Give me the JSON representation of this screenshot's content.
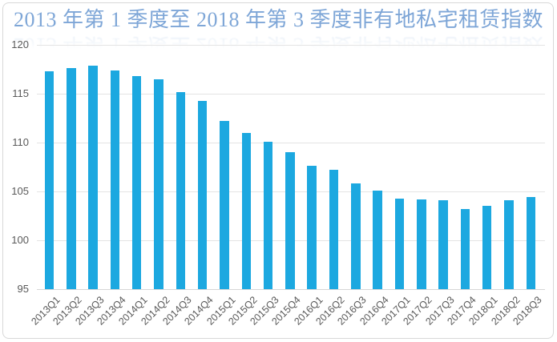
{
  "title": {
    "text": "2013 年第 1 季度至 2018 年第 3 季度非有地私宅租赁指数"
  },
  "colors": {
    "bar": "#1ca8e0",
    "gridline": "#e4e4e4",
    "baseline": "#d6d6d6",
    "axis_label": "#595959",
    "title": "#7ea6d7",
    "frame_border": "#d8d8d8",
    "background": "#ffffff"
  },
  "chart_data": {
    "type": "bar",
    "title": "2013 年第 1 季度至 2018 年第 3 季度非有地私宅租赁指数",
    "categories": [
      "2013Q1",
      "2013Q2",
      "2013Q3",
      "2013Q4",
      "2014Q1",
      "2014Q2",
      "2014Q3",
      "2014Q4",
      "2015Q1",
      "2015Q2",
      "2015Q3",
      "2015Q4",
      "2016Q1",
      "2016Q2",
      "2016Q3",
      "2016Q4",
      "2017Q1",
      "2017Q2",
      "2017Q3",
      "2017Q4",
      "2018Q1",
      "2018Q2",
      "2018Q3"
    ],
    "values": [
      117.3,
      117.6,
      117.9,
      117.4,
      116.8,
      116.5,
      115.2,
      114.3,
      112.2,
      111.0,
      110.1,
      109.0,
      107.6,
      107.2,
      105.8,
      105.1,
      104.3,
      104.2,
      104.1,
      103.2,
      103.5,
      104.1,
      104.4
    ],
    "xlabel": "",
    "ylabel": "",
    "ylim": [
      95,
      120
    ],
    "yticks": [
      95,
      100,
      105,
      110,
      115,
      120
    ],
    "grid": "horizontal",
    "legend": "none",
    "bar_color": "#1ca8e0",
    "x_tick_rotation": -45
  }
}
